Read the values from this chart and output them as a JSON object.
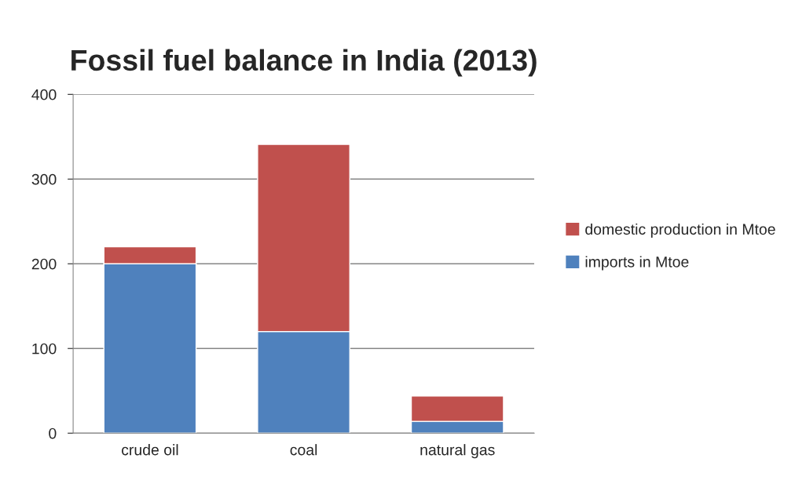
{
  "chart_data": {
    "type": "bar",
    "title": "Fossil fuel balance in India (2013)",
    "categories": [
      "crude oil",
      "coal",
      "natural gas"
    ],
    "stacked": true,
    "series": [
      {
        "name": "imports in Mtoe",
        "color": "#4f81bd",
        "values": [
          200,
          120,
          14
        ]
      },
      {
        "name": "domestic production in Mtoe",
        "color": "#c0504d",
        "values": [
          20,
          221,
          30
        ]
      }
    ],
    "ylim": [
      0,
      400
    ],
    "yticks": [
      0,
      100,
      200,
      300,
      400
    ],
    "grid": "y",
    "legend": "right"
  }
}
